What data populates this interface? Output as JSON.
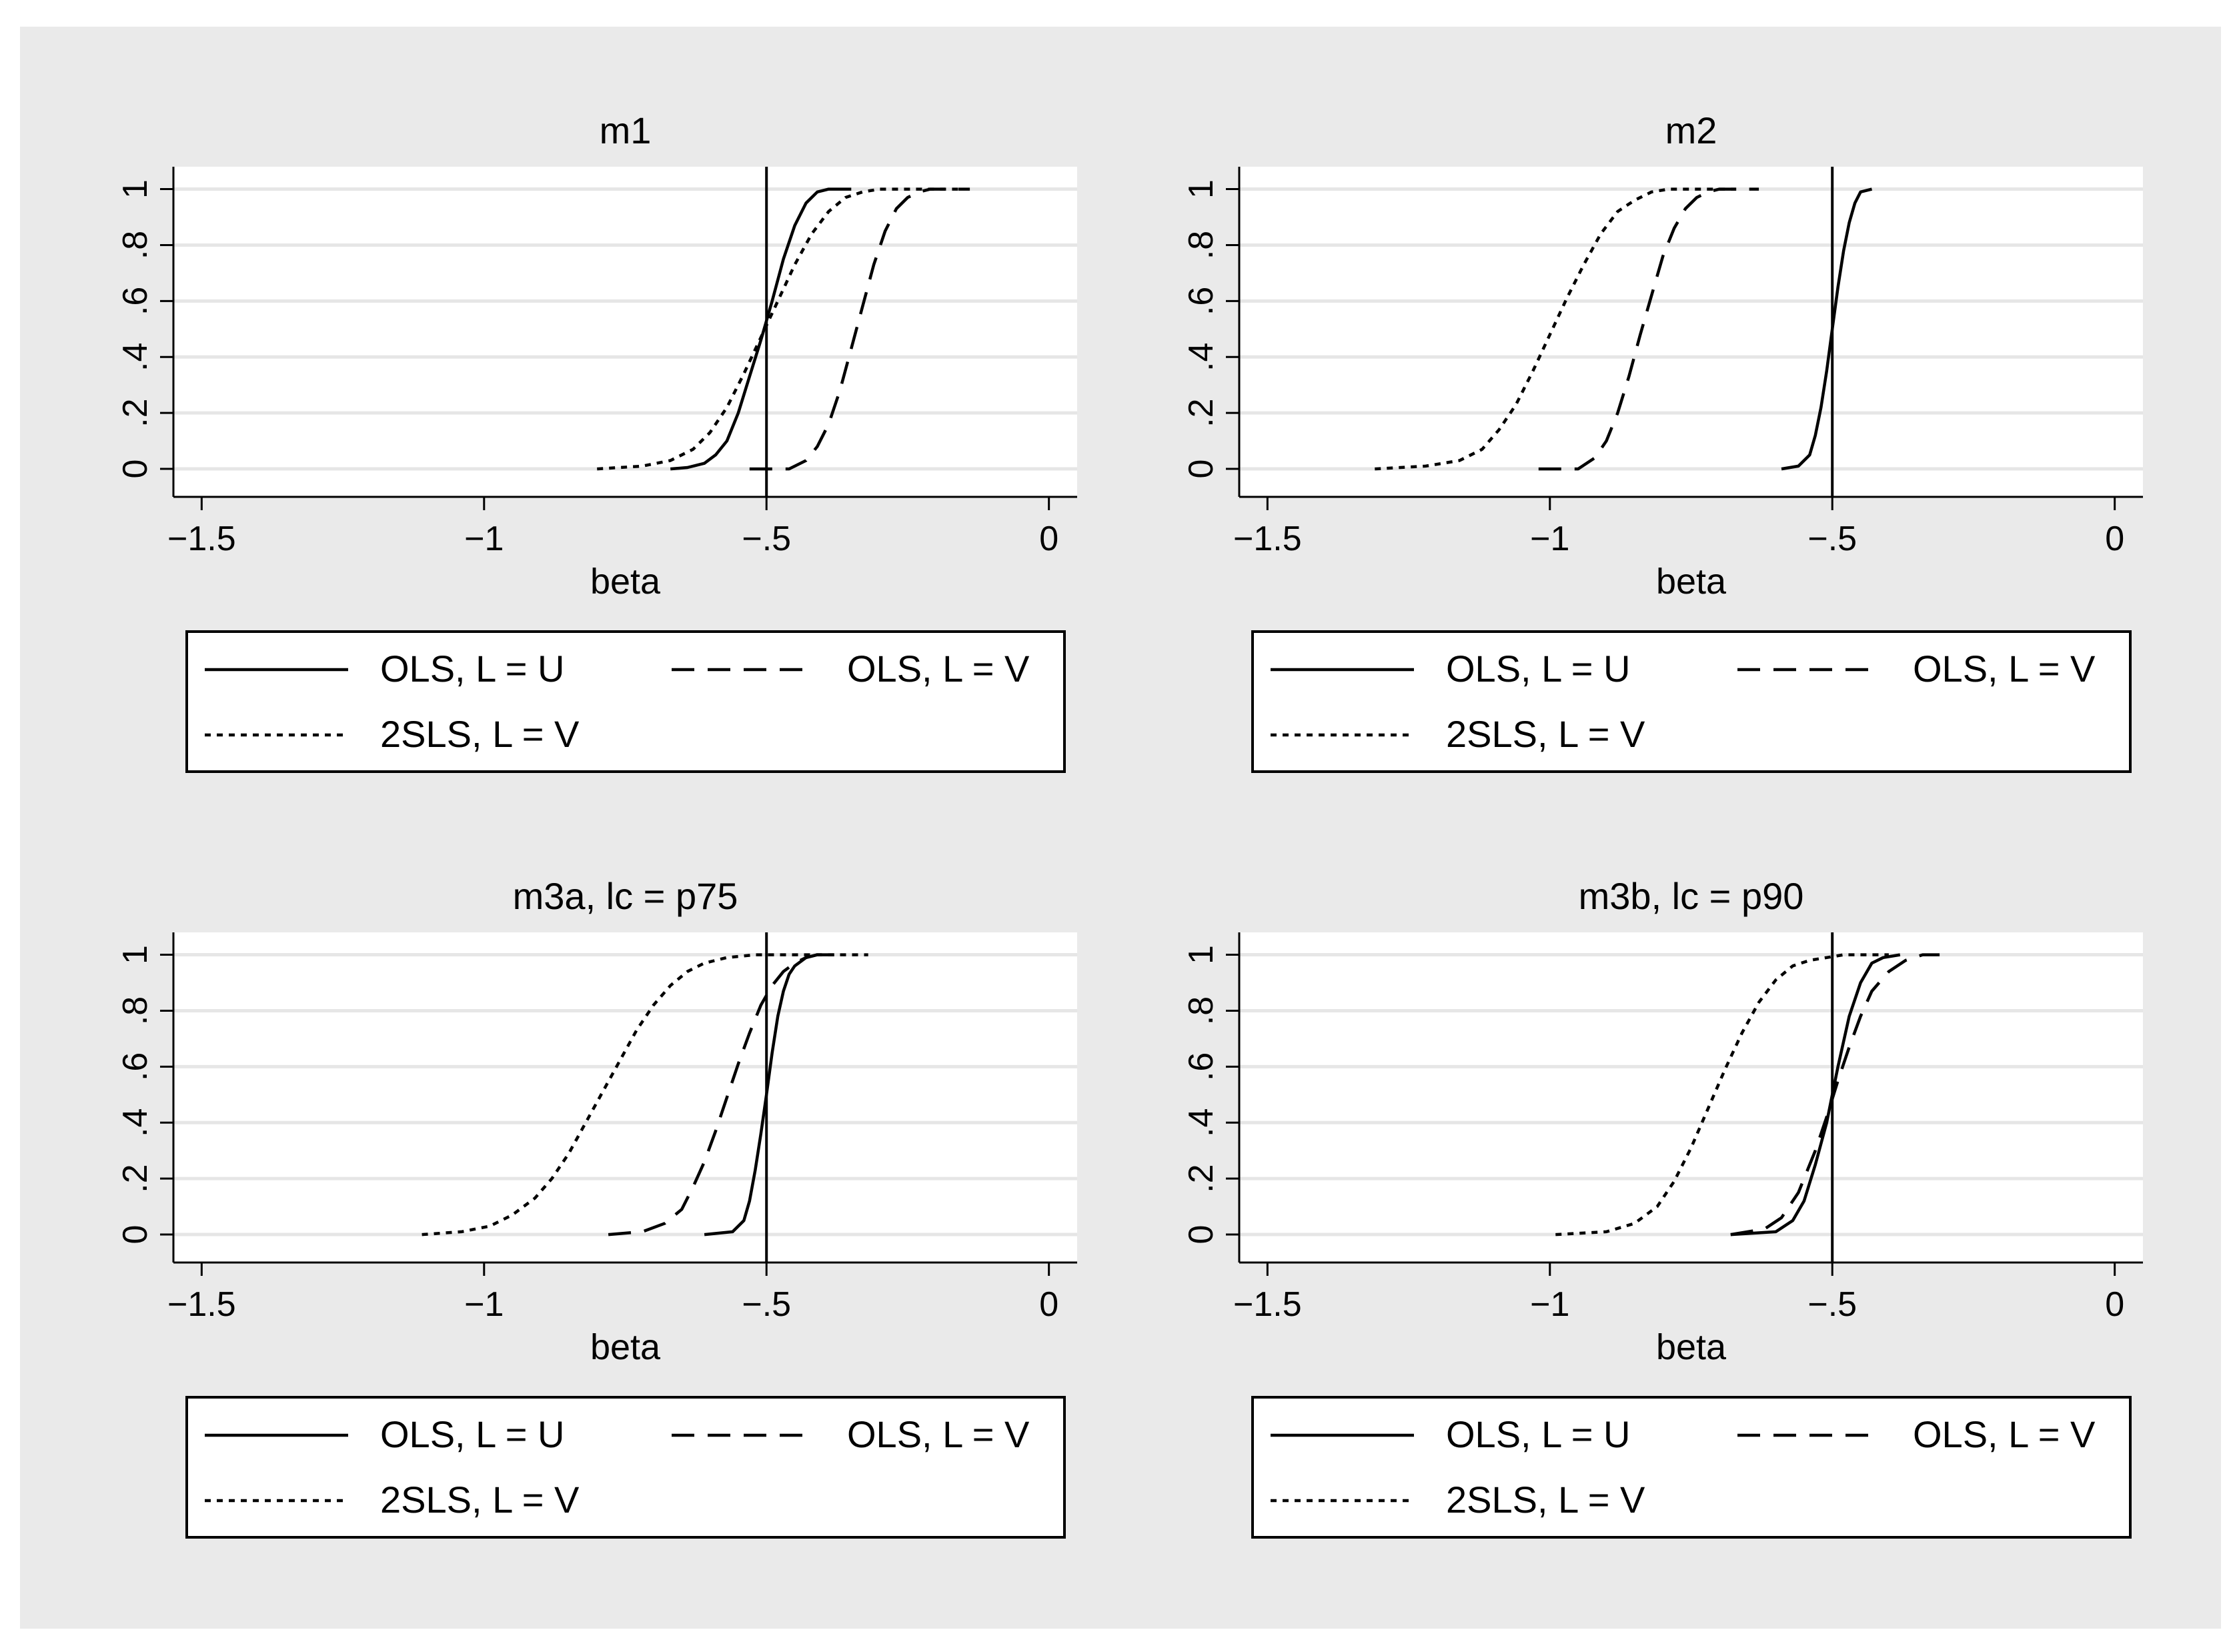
{
  "legend": {
    "entries": [
      "OLS, L = U",
      "OLS, L = V",
      "2SLS, L = V"
    ]
  },
  "colors": {
    "background": "#eaeaea",
    "plot_bg": "#ffffff",
    "grid": "#e6e6e6",
    "line": "#000000"
  },
  "chart_data": [
    {
      "type": "line",
      "title": "m1",
      "xlabel": "beta",
      "ylabel": "",
      "xlim": [
        -1.55,
        0.05
      ],
      "ylim": [
        -0.1,
        1.08
      ],
      "xticks": [
        -1.5,
        -1,
        -0.5,
        0
      ],
      "xtick_labels": [
        "−1.5",
        "−1",
        "−.5",
        "0"
      ],
      "yticks": [
        0,
        0.2,
        0.4,
        0.6,
        0.8,
        1
      ],
      "ytick_labels": [
        "0",
        ".2",
        ".4",
        ".6",
        ".8",
        "1"
      ],
      "reference_line_x": -0.5,
      "series": [
        {
          "name": "OLS, L = U",
          "style": "solid",
          "x": [
            -0.67,
            -0.64,
            -0.61,
            -0.59,
            -0.57,
            -0.55,
            -0.53,
            -0.51,
            -0.49,
            -0.47,
            -0.45,
            -0.43,
            -0.41,
            -0.39,
            -0.37,
            -0.35
          ],
          "y": [
            0,
            0.005,
            0.02,
            0.05,
            0.1,
            0.2,
            0.33,
            0.46,
            0.6,
            0.75,
            0.87,
            0.95,
            0.99,
            1,
            1,
            1
          ]
        },
        {
          "name": "OLS, L = V",
          "style": "dashed",
          "x": [
            -0.53,
            -0.46,
            -0.43,
            -0.41,
            -0.39,
            -0.37,
            -0.35,
            -0.33,
            -0.31,
            -0.29,
            -0.27,
            -0.25,
            -0.23,
            -0.21,
            -0.19,
            -0.15
          ],
          "y": [
            0,
            0,
            0.03,
            0.08,
            0.16,
            0.28,
            0.43,
            0.58,
            0.73,
            0.85,
            0.93,
            0.97,
            0.99,
            1,
            1,
            1
          ]
        },
        {
          "name": "2SLS, L = V",
          "style": "dotted",
          "x": [
            -0.8,
            -0.72,
            -0.67,
            -0.63,
            -0.6,
            -0.57,
            -0.54,
            -0.51,
            -0.48,
            -0.45,
            -0.42,
            -0.39,
            -0.36,
            -0.33,
            -0.3,
            -0.26,
            -0.14
          ],
          "y": [
            0,
            0.01,
            0.03,
            0.07,
            0.13,
            0.22,
            0.34,
            0.47,
            0.6,
            0.73,
            0.84,
            0.92,
            0.97,
            0.99,
            1,
            1,
            1
          ]
        }
      ]
    },
    {
      "type": "line",
      "title": "m2",
      "xlabel": "beta",
      "ylabel": "",
      "xlim": [
        -1.55,
        0.05
      ],
      "ylim": [
        -0.1,
        1.08
      ],
      "xticks": [
        -1.5,
        -1,
        -0.5,
        0
      ],
      "xtick_labels": [
        "−1.5",
        "−1",
        "−.5",
        "0"
      ],
      "yticks": [
        0,
        0.2,
        0.4,
        0.6,
        0.8,
        1
      ],
      "ytick_labels": [
        "0",
        ".2",
        ".4",
        ".6",
        ".8",
        "1"
      ],
      "reference_line_x": -0.5,
      "series": [
        {
          "name": "OLS, L = U",
          "style": "solid",
          "x": [
            -0.59,
            -0.56,
            -0.54,
            -0.53,
            -0.52,
            -0.51,
            -0.5,
            -0.49,
            -0.48,
            -0.47,
            -0.46,
            -0.45,
            -0.43
          ],
          "y": [
            0,
            0.01,
            0.05,
            0.12,
            0.22,
            0.35,
            0.5,
            0.65,
            0.78,
            0.88,
            0.95,
            0.99,
            1
          ]
        },
        {
          "name": "OLS, L = V",
          "style": "dashed",
          "x": [
            -1.02,
            -0.95,
            -0.92,
            -0.9,
            -0.88,
            -0.86,
            -0.84,
            -0.82,
            -0.8,
            -0.78,
            -0.76,
            -0.74,
            -0.72,
            -0.7,
            -0.68,
            -0.63
          ],
          "y": [
            0,
            0,
            0.04,
            0.1,
            0.2,
            0.33,
            0.48,
            0.62,
            0.76,
            0.86,
            0.93,
            0.97,
            0.99,
            1,
            1,
            1
          ]
        },
        {
          "name": "2SLS, L = V",
          "style": "dotted",
          "x": [
            -1.31,
            -1.22,
            -1.16,
            -1.12,
            -1.09,
            -1.06,
            -1.03,
            -1.0,
            -0.97,
            -0.94,
            -0.91,
            -0.88,
            -0.85,
            -0.82,
            -0.79,
            -0.75,
            -0.67
          ],
          "y": [
            0,
            0.01,
            0.03,
            0.07,
            0.14,
            0.23,
            0.35,
            0.48,
            0.61,
            0.73,
            0.84,
            0.92,
            0.96,
            0.99,
            1,
            1,
            1
          ]
        }
      ]
    },
    {
      "type": "line",
      "title": "m3a, lc = p75",
      "xlabel": "beta",
      "ylabel": "",
      "xlim": [
        -1.55,
        0.05
      ],
      "ylim": [
        -0.1,
        1.08
      ],
      "xticks": [
        -1.5,
        -1,
        -0.5,
        0
      ],
      "xtick_labels": [
        "−1.5",
        "−1",
        "−.5",
        "0"
      ],
      "yticks": [
        0,
        0.2,
        0.4,
        0.6,
        0.8,
        1
      ],
      "ytick_labels": [
        "0",
        ".2",
        ".4",
        ".6",
        ".8",
        "1"
      ],
      "reference_line_x": -0.5,
      "series": [
        {
          "name": "OLS, L = U",
          "style": "solid",
          "x": [
            -0.61,
            -0.56,
            -0.54,
            -0.53,
            -0.52,
            -0.51,
            -0.5,
            -0.49,
            -0.48,
            -0.47,
            -0.46,
            -0.45,
            -0.43,
            -0.41,
            -0.38
          ],
          "y": [
            0,
            0.01,
            0.05,
            0.12,
            0.23,
            0.36,
            0.5,
            0.65,
            0.78,
            0.87,
            0.93,
            0.96,
            0.99,
            1,
            1
          ]
        },
        {
          "name": "OLS, L = V",
          "style": "dashed",
          "x": [
            -0.78,
            -0.72,
            -0.68,
            -0.65,
            -0.63,
            -0.61,
            -0.59,
            -0.57,
            -0.55,
            -0.53,
            -0.51,
            -0.49,
            -0.47,
            -0.45,
            -0.43,
            -0.41,
            -0.38
          ],
          "y": [
            0,
            0.01,
            0.04,
            0.09,
            0.17,
            0.26,
            0.37,
            0.49,
            0.61,
            0.72,
            0.82,
            0.89,
            0.94,
            0.97,
            0.99,
            1,
            1
          ]
        },
        {
          "name": "2SLS, L = V",
          "style": "dotted",
          "x": [
            -1.11,
            -1.04,
            -0.99,
            -0.95,
            -0.91,
            -0.88,
            -0.85,
            -0.82,
            -0.79,
            -0.76,
            -0.73,
            -0.7,
            -0.67,
            -0.64,
            -0.61,
            -0.57,
            -0.52,
            -0.44,
            -0.32
          ],
          "y": [
            0,
            0.01,
            0.03,
            0.07,
            0.13,
            0.2,
            0.29,
            0.4,
            0.51,
            0.62,
            0.73,
            0.82,
            0.89,
            0.94,
            0.97,
            0.99,
            1,
            1,
            1
          ]
        }
      ]
    },
    {
      "type": "line",
      "title": "m3b, lc = p90",
      "xlabel": "beta",
      "ylabel": "",
      "xlim": [
        -1.55,
        0.05
      ],
      "ylim": [
        -0.1,
        1.08
      ],
      "xticks": [
        -1.5,
        -1,
        -0.5,
        0
      ],
      "xtick_labels": [
        "−1.5",
        "−1",
        "−.5",
        "0"
      ],
      "yticks": [
        0,
        0.2,
        0.4,
        0.6,
        0.8,
        1
      ],
      "ytick_labels": [
        "0",
        ".2",
        ".4",
        ".6",
        ".8",
        "1"
      ],
      "reference_line_x": -0.5,
      "series": [
        {
          "name": "OLS, L = U",
          "style": "solid",
          "x": [
            -0.68,
            -0.6,
            -0.57,
            -0.55,
            -0.53,
            -0.51,
            -0.5,
            -0.49,
            -0.47,
            -0.45,
            -0.43,
            -0.41,
            -0.38
          ],
          "y": [
            0,
            0.01,
            0.05,
            0.12,
            0.25,
            0.4,
            0.5,
            0.6,
            0.78,
            0.9,
            0.97,
            0.99,
            1
          ]
        },
        {
          "name": "OLS, L = V",
          "style": "dashed",
          "x": [
            -0.68,
            -0.62,
            -0.59,
            -0.56,
            -0.53,
            -0.51,
            -0.49,
            -0.47,
            -0.45,
            -0.43,
            -0.4,
            -0.37,
            -0.34,
            -0.31
          ],
          "y": [
            0,
            0.02,
            0.06,
            0.15,
            0.3,
            0.42,
            0.55,
            0.67,
            0.78,
            0.87,
            0.94,
            0.98,
            1,
            1
          ]
        },
        {
          "name": "2SLS, L = V",
          "style": "dotted",
          "x": [
            -0.99,
            -0.9,
            -0.85,
            -0.81,
            -0.78,
            -0.75,
            -0.72,
            -0.69,
            -0.66,
            -0.63,
            -0.6,
            -0.57,
            -0.54,
            -0.51,
            -0.48,
            -0.44,
            -0.4
          ],
          "y": [
            0,
            0.01,
            0.04,
            0.1,
            0.19,
            0.31,
            0.45,
            0.59,
            0.72,
            0.83,
            0.91,
            0.96,
            0.98,
            0.99,
            1,
            1,
            1
          ]
        }
      ]
    }
  ]
}
